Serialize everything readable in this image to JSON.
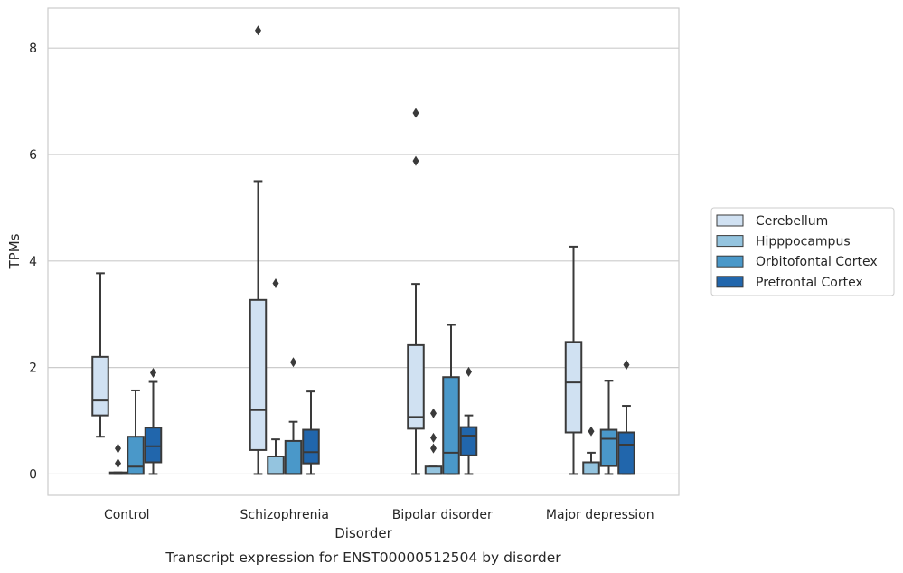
{
  "chart_data": {
    "type": "box",
    "xlabel": "Disorder",
    "ylabel": "TPMs",
    "caption": "Transcript expression for ENST00000512504 by disorder",
    "ylim": [
      -0.4,
      8.75
    ],
    "yticks": [
      "0",
      "2",
      "4",
      "6",
      "8"
    ],
    "grid": true,
    "legend_position": "right",
    "categories": [
      "Control",
      "Schizophrenia",
      "Bipolar disorder",
      "Major depression"
    ],
    "series": [
      {
        "name": "Cerebellum",
        "color": "#d0e1f2",
        "boxes": [
          {
            "min": 0.7,
            "q1": 1.1,
            "median": 1.38,
            "q3": 2.2,
            "max": 3.77,
            "outliers": []
          },
          {
            "min": 0.0,
            "q1": 0.45,
            "median": 1.2,
            "q3": 3.27,
            "max": 5.5,
            "outliers": [
              8.33
            ]
          },
          {
            "min": 0.0,
            "q1": 0.85,
            "median": 1.07,
            "q3": 2.42,
            "max": 3.57,
            "outliers": [
              6.78,
              5.88
            ]
          },
          {
            "min": 0.0,
            "q1": 0.78,
            "median": 1.72,
            "q3": 2.48,
            "max": 4.27,
            "outliers": []
          }
        ]
      },
      {
        "name": "Hipppocampus",
        "color": "#94c4df",
        "boxes": [
          {
            "min": 0.0,
            "q1": 0.0,
            "median": 0.01,
            "q3": 0.03,
            "max": 0.03,
            "outliers": [
              0.48,
              0.2
            ]
          },
          {
            "min": 0.0,
            "q1": 0.0,
            "median": 0.0,
            "q3": 0.33,
            "max": 0.65,
            "outliers": [
              3.58
            ]
          },
          {
            "min": 0.0,
            "q1": 0.0,
            "median": 0.0,
            "q3": 0.14,
            "max": 0.14,
            "outliers": [
              1.14,
              0.68,
              0.48
            ]
          },
          {
            "min": 0.0,
            "q1": 0.0,
            "median": 0.0,
            "q3": 0.22,
            "max": 0.4,
            "outliers": [
              0.8
            ]
          }
        ]
      },
      {
        "name": "Orbitofontal Cortex",
        "color": "#4a98c9",
        "boxes": [
          {
            "min": 0.0,
            "q1": 0.0,
            "median": 0.14,
            "q3": 0.7,
            "max": 1.57,
            "outliers": []
          },
          {
            "min": 0.0,
            "q1": 0.0,
            "median": 0.0,
            "q3": 0.62,
            "max": 0.98,
            "outliers": [
              2.1
            ]
          },
          {
            "min": 0.0,
            "q1": 0.0,
            "median": 0.4,
            "q3": 1.82,
            "max": 2.8,
            "outliers": []
          },
          {
            "min": 0.0,
            "q1": 0.15,
            "median": 0.66,
            "q3": 0.83,
            "max": 1.75,
            "outliers": []
          }
        ]
      },
      {
        "name": "Prefrontal Cortex",
        "color": "#2166ac",
        "boxes": [
          {
            "min": 0.0,
            "q1": 0.22,
            "median": 0.52,
            "q3": 0.87,
            "max": 1.73,
            "outliers": [
              1.9
            ]
          },
          {
            "min": 0.0,
            "q1": 0.2,
            "median": 0.41,
            "q3": 0.83,
            "max": 1.55,
            "outliers": []
          },
          {
            "min": 0.0,
            "q1": 0.35,
            "median": 0.72,
            "q3": 0.88,
            "max": 1.1,
            "outliers": [
              1.92
            ]
          },
          {
            "min": 0.0,
            "q1": 0.0,
            "median": 0.55,
            "q3": 0.78,
            "max": 1.28,
            "outliers": [
              2.05
            ]
          }
        ]
      }
    ]
  }
}
